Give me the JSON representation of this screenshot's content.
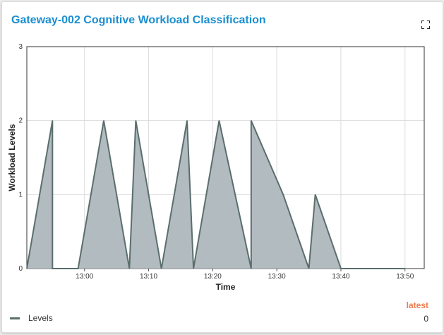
{
  "header": {
    "title": "Gateway-002 Cognitive Workload Classification",
    "expand_icon": "expand-icon"
  },
  "legend": {
    "series_label": "Levels",
    "latest_header": "latest",
    "latest_value": "0"
  },
  "colors": {
    "title": "#1a8fd0",
    "area_fill": "#b2bbc0",
    "line": "#5a6e6c",
    "latest": "#f07a4c"
  },
  "chart_data": {
    "type": "area",
    "xlabel": "Time",
    "ylabel": "Workload Levels",
    "ylim": [
      0,
      3
    ],
    "yticks": [
      "0",
      "1",
      "2",
      "3"
    ],
    "xticks": [
      "13:00",
      "13:10",
      "13:20",
      "13:30",
      "13:40",
      "13:50"
    ],
    "xlim_minutes": [
      "12:51",
      "13:53"
    ],
    "grid": true,
    "series": [
      {
        "name": "Levels",
        "x": [
          "12:51",
          "12:55",
          "12:55",
          "12:59",
          "13:03",
          "13:07",
          "13:08",
          "13:12",
          "13:16",
          "13:17",
          "13:21",
          "13:26",
          "13:26",
          "13:31",
          "13:35",
          "13:36",
          "13:40",
          "13:44",
          "13:50"
        ],
        "values": [
          0,
          2,
          0,
          0,
          2,
          0,
          2,
          0,
          2,
          0,
          2,
          0,
          2,
          1,
          0,
          1,
          0,
          0,
          0
        ]
      }
    ]
  }
}
